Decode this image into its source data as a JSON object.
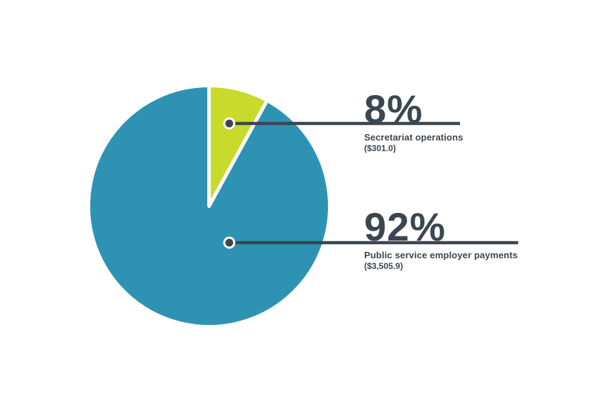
{
  "page": {
    "background_color": "#ffffff"
  },
  "chart_data": {
    "type": "pie",
    "direction": "clockwise",
    "start_angle_deg": 0,
    "legend_position": "right-callouts",
    "segments": [
      {
        "label": "Secretariat operations",
        "pct": 8,
        "pct_label": "8%",
        "value": 301.0,
        "value_label": "($301.0)",
        "color": "#c8da2b"
      },
      {
        "label": "Public service employer payments",
        "pct": 92,
        "pct_label": "92%",
        "value": 3505.9,
        "value_label": "($3,505.9)",
        "color": "#2e93b3"
      }
    ],
    "callout_text_color": "#3b4650",
    "leader_line_color": "#3b4650",
    "leader_dot_ring_color": "#ffffff",
    "slice_gap_color": "#ffffff"
  }
}
